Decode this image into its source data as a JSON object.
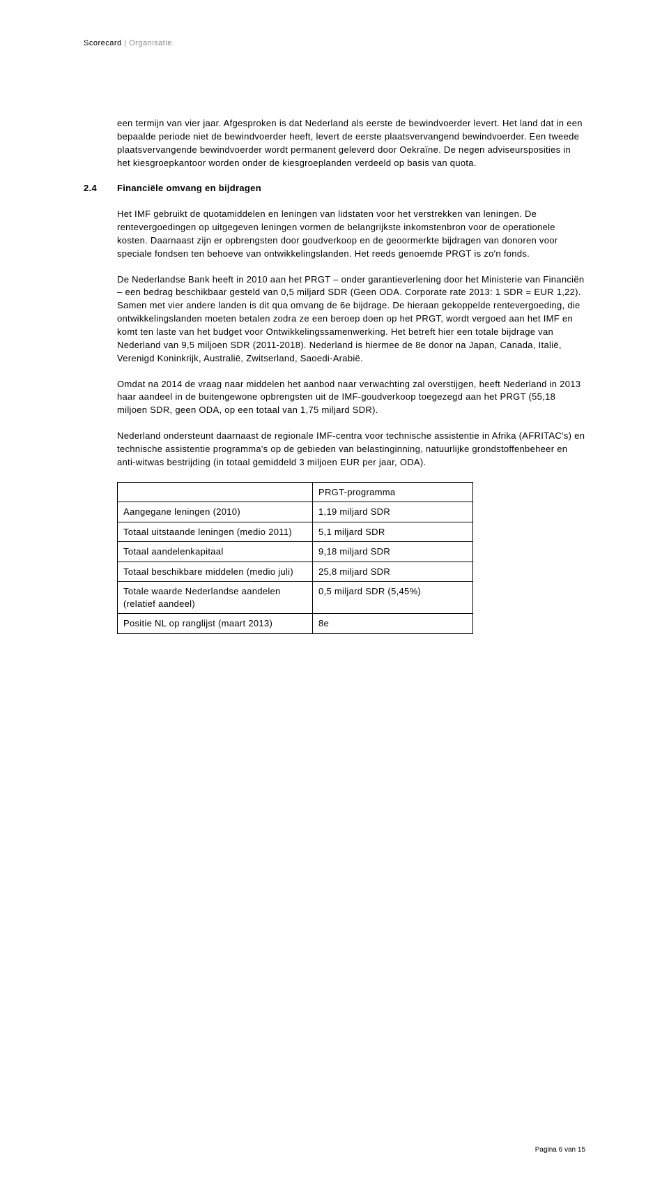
{
  "header": {
    "title_main": "Scorecard",
    "title_sep": " | ",
    "title_sub": "Organisatie"
  },
  "intro_para": "een termijn van vier jaar. Afgesproken is dat Nederland als eerste de bewindvoerder levert. Het land dat in een bepaalde periode niet de bewindvoerder heeft, levert de eerste plaatsvervangend bewindvoerder. Een tweede plaatsvervangende bewindvoerder wordt permanent geleverd door Oekraïne. De negen adviseursposities in het kiesgroepkantoor worden onder de kiesgroeplanden verdeeld op basis van quota.",
  "section": {
    "num": "2.4",
    "title": "Financiële omvang en bijdragen"
  },
  "paras": {
    "p1": "Het IMF gebruikt de quotamiddelen en leningen van lidstaten voor het verstrekken van leningen. De rentevergoedingen op uitgegeven leningen vormen de belangrijkste inkomstenbron voor de operationele kosten. Daarnaast zijn er opbrengsten door goudverkoop en de geoormerkte bijdragen van donoren voor speciale fondsen ten behoeve van ontwikkelingslanden. Het reeds genoemde PRGT is zo'n fonds.",
    "p2": "De Nederlandse Bank heeft in 2010 aan het PRGT – onder garantieverlening door het Ministerie van Financiën – een bedrag beschikbaar gesteld van 0,5 miljard SDR (Geen ODA. Corporate rate 2013: 1 SDR = EUR 1,22). Samen met vier andere landen is dit qua omvang de 6e bijdrage. De hieraan gekoppelde rentevergoeding, die ontwikkelingslanden moeten betalen zodra ze een beroep doen op het PRGT, wordt vergoed aan het IMF en komt ten laste van het budget voor Ontwikkelingssamenwerking. Het betreft hier een totale bijdrage van Nederland van 9,5 miljoen SDR (2011-2018). Nederland is hiermee de 8e donor na Japan, Canada, Italië, Verenigd Koninkrijk, Australië, Zwitserland, Saoedi-Arabië.",
    "p3": "Omdat na 2014 de vraag naar middelen het aanbod naar verwachting zal overstijgen, heeft Nederland in 2013 haar aandeel in de buitengewone opbrengsten uit de IMF-goudverkoop toegezegd aan het PRGT (55,18 miljoen SDR, geen ODA, op een totaal van 1,75 miljard SDR).",
    "p4": "Nederland ondersteunt daarnaast de regionale IMF-centra voor technische assistentie in Afrika (AFRITAC's) en technische assistentie programma's op de gebieden van belastinginning, natuurlijke grondstoffenbeheer en anti-witwas bestrijding (in totaal gemiddeld 3 miljoen EUR per jaar, ODA)."
  },
  "table": {
    "header_value": "PRGT-programma",
    "rows": [
      {
        "label": "Aangegane leningen (2010)",
        "value": "1,19 miljard SDR"
      },
      {
        "label": "Totaal uitstaande leningen (medio 2011)",
        "value": "5,1 miljard SDR"
      },
      {
        "label": "Totaal aandelenkapitaal",
        "value": "9,18 miljard SDR"
      },
      {
        "label": "Totaal beschikbare middelen (medio juli)",
        "value": "25,8 miljard SDR"
      },
      {
        "label": "Totale waarde Nederlandse aandelen (relatief aandeel)",
        "value": "0,5 miljard SDR (5,45%)"
      },
      {
        "label": "Positie NL op ranglijst (maart 2013)",
        "value": "8e"
      }
    ]
  },
  "footer": "Pagina 6 van 15"
}
